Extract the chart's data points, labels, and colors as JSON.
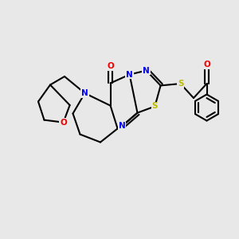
{
  "bg_color": "#e8e8e8",
  "bond_color": "#000000",
  "N_color": "#0000ee",
  "O_color": "#ee0000",
  "S_color": "#bbbb00",
  "line_width": 1.5,
  "font_size": 7.5
}
